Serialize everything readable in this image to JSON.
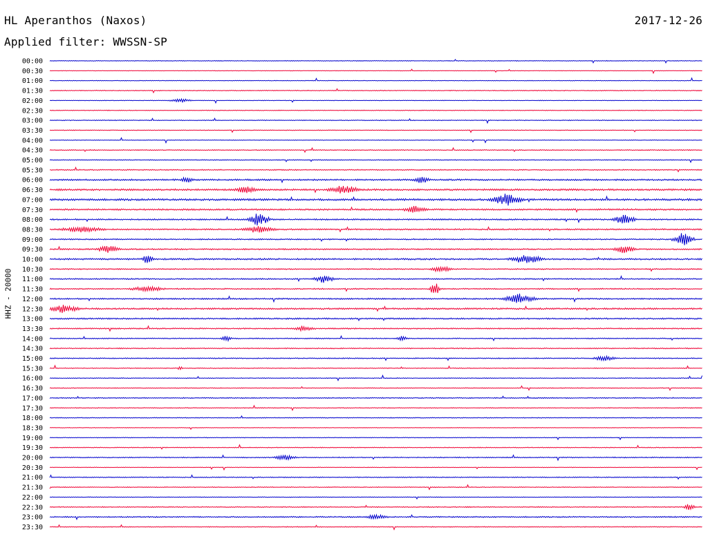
{
  "header": {
    "station": "HL Aperanthos (Naxos)",
    "date": "2017-12-26",
    "filter": "Applied filter: WWSSN-SP"
  },
  "chart_data": {
    "type": "line",
    "title": "HL Aperanthos (Naxos)",
    "ylabel": "HHZ - 20000",
    "colors": [
      "#0000cc",
      "#ee0033"
    ],
    "times": [
      "00:00",
      "00:30",
      "01:00",
      "01:30",
      "02:00",
      "02:30",
      "03:00",
      "03:30",
      "04:00",
      "04:30",
      "05:00",
      "05:30",
      "06:00",
      "06:30",
      "07:00",
      "07:30",
      "08:00",
      "08:30",
      "09:00",
      "09:30",
      "10:00",
      "10:30",
      "11:00",
      "11:30",
      "12:00",
      "12:30",
      "13:00",
      "13:30",
      "14:00",
      "14:30",
      "15:00",
      "15:30",
      "16:00",
      "16:30",
      "17:00",
      "17:30",
      "18:00",
      "18:30",
      "19:00",
      "19:30",
      "20:00",
      "20:30",
      "21:00",
      "21:30",
      "22:00",
      "22:30",
      "23:00",
      "23:30"
    ],
    "noise_levels": [
      0.35,
      0.25,
      0.3,
      0.4,
      0.3,
      0.35,
      0.4,
      0.35,
      0.3,
      0.45,
      0.4,
      0.5,
      0.8,
      0.9,
      1.0,
      0.8,
      0.7,
      0.7,
      0.6,
      0.7,
      0.8,
      0.6,
      0.6,
      0.6,
      0.7,
      0.8,
      0.7,
      0.6,
      0.5,
      0.5,
      0.5,
      0.4,
      0.4,
      0.4,
      0.5,
      0.4,
      0.4,
      0.3,
      0.35,
      0.4,
      0.5,
      0.3,
      0.45,
      0.4,
      0.35,
      0.5,
      0.6,
      0.4
    ],
    "events": [
      {
        "row": 4,
        "pos": 0.2,
        "amp": 3,
        "width": 0.02
      },
      {
        "row": 12,
        "pos": 0.21,
        "amp": 5,
        "width": 0.01
      },
      {
        "row": 12,
        "pos": 0.57,
        "amp": 5,
        "width": 0.015
      },
      {
        "row": 13,
        "pos": 0.3,
        "amp": 5,
        "width": 0.02
      },
      {
        "row": 13,
        "pos": 0.45,
        "amp": 6,
        "width": 0.03
      },
      {
        "row": 14,
        "pos": 0.7,
        "amp": 8,
        "width": 0.03
      },
      {
        "row": 15,
        "pos": 0.56,
        "amp": 5,
        "width": 0.02
      },
      {
        "row": 16,
        "pos": 0.32,
        "amp": 10,
        "width": 0.02
      },
      {
        "row": 16,
        "pos": 0.88,
        "amp": 8,
        "width": 0.02
      },
      {
        "row": 17,
        "pos": 0.05,
        "amp": 4,
        "width": 0.04
      },
      {
        "row": 17,
        "pos": 0.32,
        "amp": 5,
        "width": 0.03
      },
      {
        "row": 18,
        "pos": 0.97,
        "amp": 10,
        "width": 0.02
      },
      {
        "row": 19,
        "pos": 0.09,
        "amp": 6,
        "width": 0.02
      },
      {
        "row": 19,
        "pos": 0.88,
        "amp": 6,
        "width": 0.02
      },
      {
        "row": 20,
        "pos": 0.15,
        "amp": 10,
        "width": 0.01
      },
      {
        "row": 20,
        "pos": 0.73,
        "amp": 7,
        "width": 0.03
      },
      {
        "row": 21,
        "pos": 0.6,
        "amp": 5,
        "width": 0.02
      },
      {
        "row": 22,
        "pos": 0.42,
        "amp": 6,
        "width": 0.02
      },
      {
        "row": 23,
        "pos": 0.15,
        "amp": 4,
        "width": 0.03
      },
      {
        "row": 23,
        "pos": 0.59,
        "amp": 10,
        "width": 0.01
      },
      {
        "row": 24,
        "pos": 0.72,
        "amp": 7,
        "width": 0.03
      },
      {
        "row": 25,
        "pos": 0.02,
        "amp": 6,
        "width": 0.03
      },
      {
        "row": 27,
        "pos": 0.39,
        "amp": 4,
        "width": 0.02
      },
      {
        "row": 28,
        "pos": 0.27,
        "amp": 4,
        "width": 0.01
      },
      {
        "row": 28,
        "pos": 0.54,
        "amp": 4,
        "width": 0.01
      },
      {
        "row": 30,
        "pos": 0.85,
        "amp": 4,
        "width": 0.02
      },
      {
        "row": 31,
        "pos": 0.2,
        "amp": 4,
        "width": 0.005
      },
      {
        "row": 40,
        "pos": 0.36,
        "amp": 4,
        "width": 0.02
      },
      {
        "row": 45,
        "pos": 0.98,
        "amp": 5,
        "width": 0.01
      },
      {
        "row": 46,
        "pos": 0.5,
        "amp": 4,
        "width": 0.02
      }
    ]
  }
}
